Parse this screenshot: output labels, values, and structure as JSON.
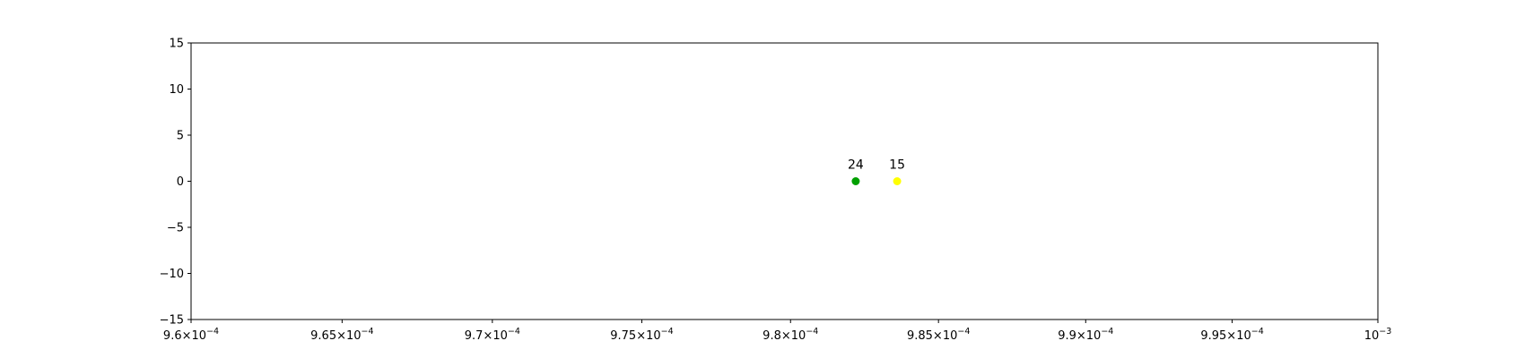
{
  "chart_data": {
    "type": "scatter",
    "title": "",
    "xlabel": "",
    "ylabel": "",
    "xscale": "log",
    "xlim": [
      0.00096,
      0.001
    ],
    "ylim": [
      -15,
      15
    ],
    "grid": false,
    "x_ticks": [
      {
        "value": 0.00096,
        "mantissa": "9.6",
        "times": "×",
        "base": "10",
        "exponent": "−4"
      },
      {
        "value": 0.000965,
        "mantissa": "9.65",
        "times": "×",
        "base": "10",
        "exponent": "−4"
      },
      {
        "value": 0.00097,
        "mantissa": "9.7",
        "times": "×",
        "base": "10",
        "exponent": "−4"
      },
      {
        "value": 0.000975,
        "mantissa": "9.75",
        "times": "×",
        "base": "10",
        "exponent": "−4"
      },
      {
        "value": 0.00098,
        "mantissa": "9.8",
        "times": "×",
        "base": "10",
        "exponent": "−4"
      },
      {
        "value": 0.000985,
        "mantissa": "9.85",
        "times": "×",
        "base": "10",
        "exponent": "−4"
      },
      {
        "value": 0.00099,
        "mantissa": "9.9",
        "times": "×",
        "base": "10",
        "exponent": "−4"
      },
      {
        "value": 0.000995,
        "mantissa": "9.95",
        "times": "×",
        "base": "10",
        "exponent": "−4"
      },
      {
        "value": 0.001,
        "mantissa": "",
        "times": "",
        "base": "10",
        "exponent": "−3"
      }
    ],
    "y_ticks": [
      {
        "value": 15,
        "label": "15"
      },
      {
        "value": 10,
        "label": "10"
      },
      {
        "value": 5,
        "label": "5"
      },
      {
        "value": 0,
        "label": "0"
      },
      {
        "value": -5,
        "label": "−5"
      },
      {
        "value": -10,
        "label": "−10"
      },
      {
        "value": -15,
        "label": "−15"
      }
    ],
    "points": [
      {
        "x": 0.0009822,
        "y": 0,
        "label": "24",
        "color": "#00a000"
      },
      {
        "x": 0.0009836,
        "y": 0,
        "label": "15",
        "color": "#ffff00"
      }
    ]
  }
}
